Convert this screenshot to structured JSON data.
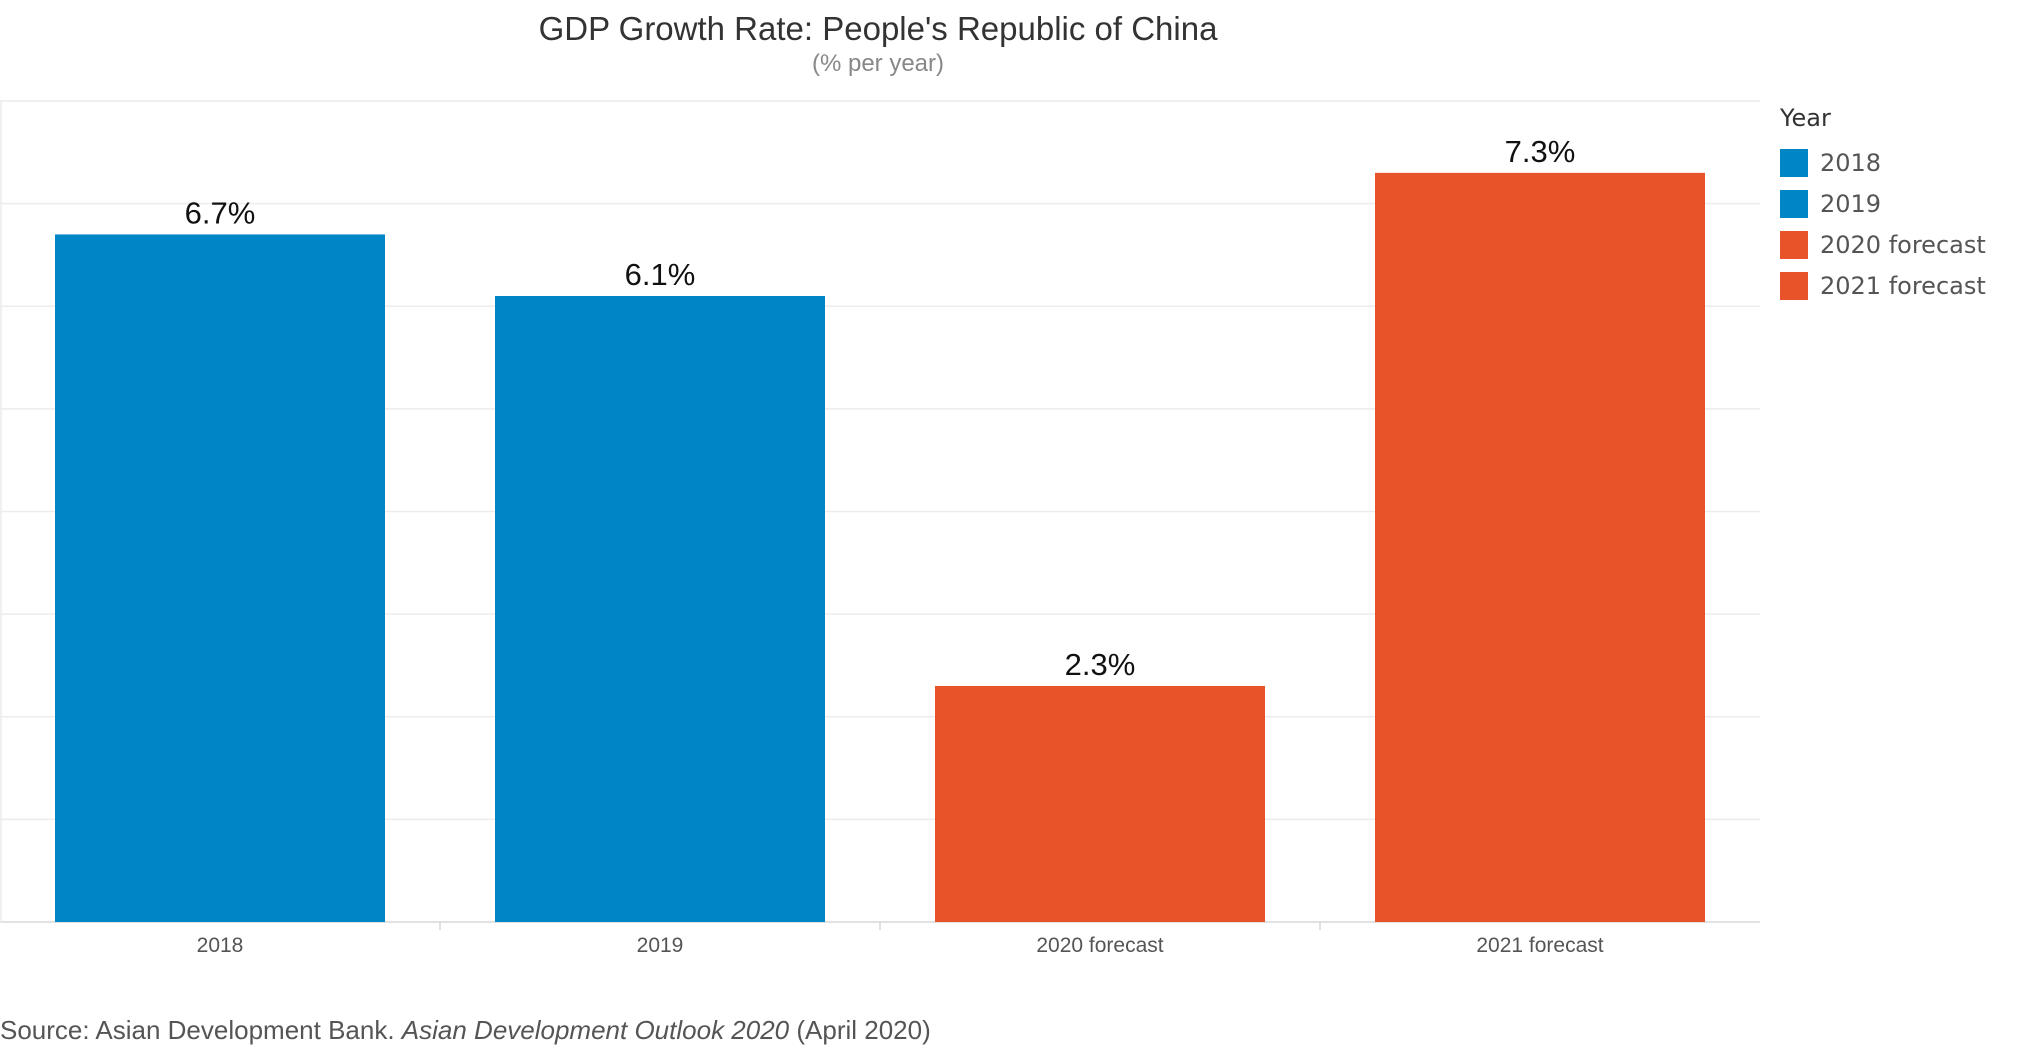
{
  "chart_data": {
    "type": "bar",
    "title": "GDP Growth Rate: People's Republic of China",
    "subtitle": "(% per year)",
    "categories": [
      "2018",
      "2019",
      "2020 forecast",
      "2021 forecast"
    ],
    "values": [
      6.7,
      6.1,
      2.3,
      7.3
    ],
    "data_labels": [
      "6.7%",
      "6.1%",
      "2.3%",
      "7.3%"
    ],
    "colors": [
      "#0086C6",
      "#0086C6",
      "#E8532A",
      "#E8532A"
    ],
    "ylim": [
      0,
      8
    ],
    "grid": true,
    "y_ticks_visible": false,
    "xlabel": "",
    "ylabel": "",
    "legend": {
      "title": "Year",
      "placement": "right",
      "entries": [
        {
          "label": "2018",
          "color": "#0086C6"
        },
        {
          "label": "2019",
          "color": "#0086C6"
        },
        {
          "label": "2020 forecast",
          "color": "#E8532A"
        },
        {
          "label": "2021 forecast",
          "color": "#E8532A"
        }
      ]
    }
  },
  "source": {
    "prefix": "Source: Asian Development Bank. ",
    "publication": "Asian Development Outlook 2020",
    "suffix": " (April 2020)"
  }
}
